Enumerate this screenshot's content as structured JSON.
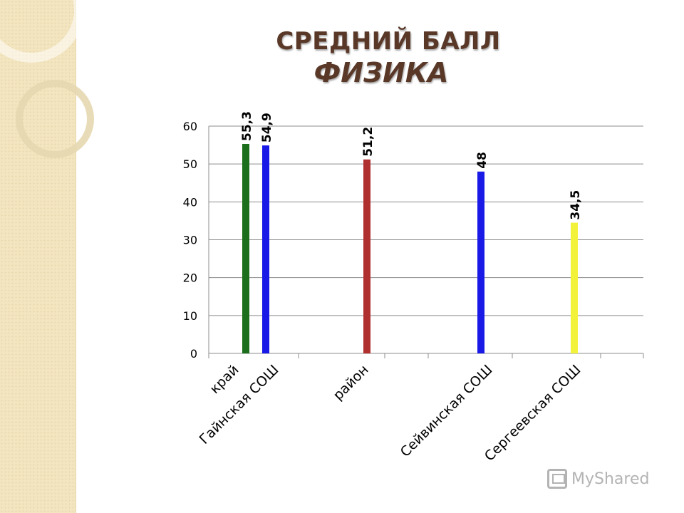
{
  "title": {
    "line1": "СРЕДНИЙ БАЛЛ",
    "line2": "ФИЗИКА"
  },
  "watermark": {
    "text": "MyShared",
    "icon": "myshared-logo-icon"
  },
  "colors": {
    "green": "#1b6e1b",
    "blue": "#1a1ae6",
    "red": "#b03030",
    "yellow": "#f2f23a",
    "grid": "#8c8c8c"
  },
  "chart_data": {
    "type": "bar",
    "categories": [
      "край",
      "Гайнская СОШ",
      "район",
      "Сейвинская СОШ",
      "Сергеевская СОШ"
    ],
    "values": [
      55.3,
      54.9,
      51.2,
      48,
      34.5
    ],
    "value_labels": [
      "55,3",
      "54,9",
      "51,2",
      "48",
      "34,5"
    ],
    "bar_colors": [
      "#1b6e1b",
      "#1a1ae6",
      "#b03030",
      "#1a1ae6",
      "#f2f23a"
    ],
    "ylim": [
      0,
      60
    ],
    "yticks": [
      0,
      10,
      20,
      30,
      40,
      50,
      60
    ],
    "grid": true,
    "legend": "none",
    "xlabel": "",
    "ylabel": ""
  }
}
